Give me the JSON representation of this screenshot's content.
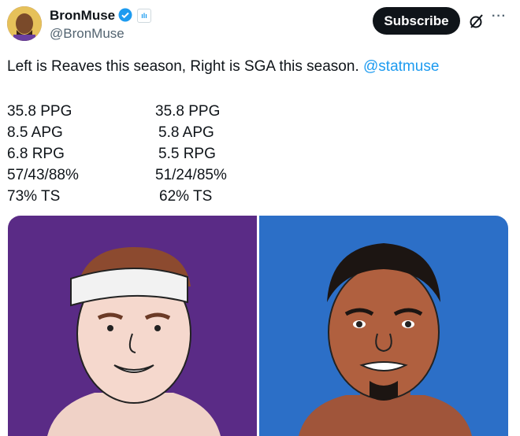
{
  "author": {
    "name": "BronMuse",
    "handle": "@BronMuse",
    "verified": true
  },
  "actions": {
    "subscribe_label": "Subscribe"
  },
  "tweet": {
    "text": "Left is Reaves this season, Right is SGA this season.",
    "mention": "@statmuse"
  },
  "stats": {
    "left": [
      "35.8 PPG",
      "8.5 APG",
      "6.8 RPG",
      "57/43/88%",
      "73% TS"
    ],
    "right": [
      "35.8 PPG",
      "5.8 APG",
      "5.5 RPG",
      "51/24/85%",
      "62% TS"
    ]
  },
  "colors": {
    "left_bg": "#5a2b86",
    "right_bg": "#2c6fc7",
    "link": "#1d9bf0"
  },
  "icons": [
    "verified-badge-icon",
    "affiliate-badge-icon",
    "grok-icon",
    "more-icon"
  ]
}
